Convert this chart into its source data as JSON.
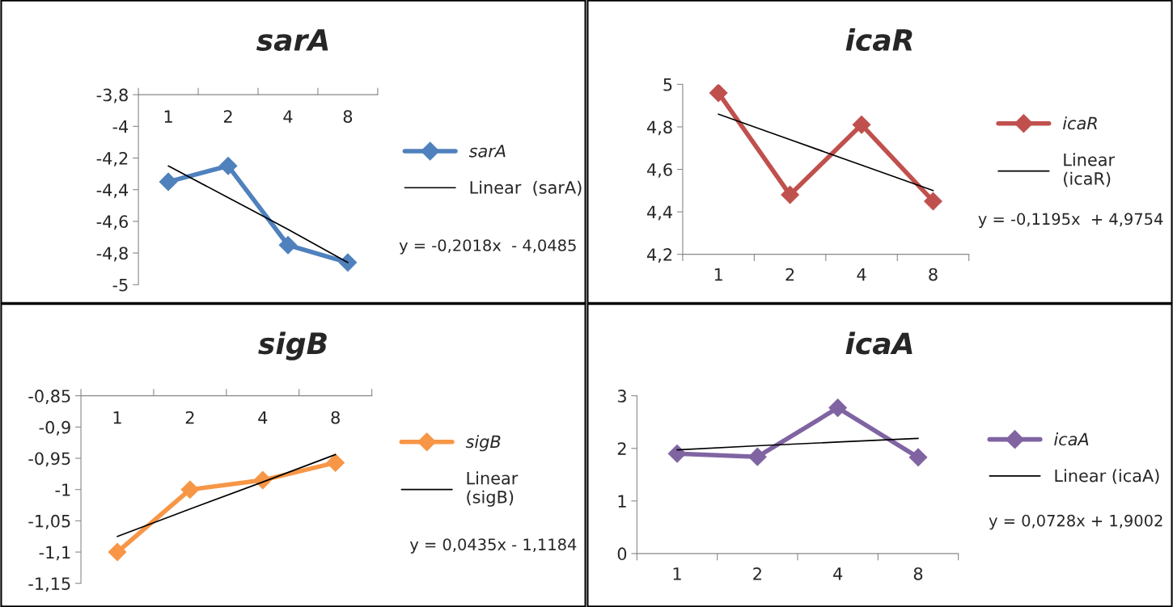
{
  "chart_data": [
    {
      "type": "line",
      "title": "sarA",
      "categories": [
        "1",
        "2",
        "4",
        "8"
      ],
      "ylim": [
        -5,
        -3.8
      ],
      "yticks": [
        {
          "value": -5,
          "label": "-5"
        },
        {
          "value": -4.8,
          "label": "-4,8"
        },
        {
          "value": -4.6,
          "label": "-4,6"
        },
        {
          "value": -4.4,
          "label": "-4,4"
        },
        {
          "value": -4.2,
          "label": "-4,2"
        },
        {
          "value": -4,
          "label": "-4"
        },
        {
          "value": -3.8,
          "label": "-3,8"
        }
      ],
      "marker": "diamond",
      "legend": "right",
      "grid": false,
      "annotations": [
        "y = -0,2018x  - 4,0485"
      ],
      "series": [
        {
          "name": "sarA",
          "color": "#4f81bd",
          "values": [
            -4.35,
            -4.25,
            -4.75,
            -4.86
          ]
        },
        {
          "name": "Linear  (sarA)",
          "color": "#000000",
          "marker": "none",
          "values": [
            -4.25,
            -4.45,
            -4.65,
            -4.86
          ]
        }
      ]
    },
    {
      "type": "line",
      "title": "icaR",
      "categories": [
        "1",
        "2",
        "4",
        "8"
      ],
      "ylim": [
        4.2,
        5
      ],
      "yticks": [
        {
          "value": 4.2,
          "label": "4,2"
        },
        {
          "value": 4.4,
          "label": "4,4"
        },
        {
          "value": 4.6,
          "label": "4,6"
        },
        {
          "value": 4.8,
          "label": "4,8"
        },
        5
      ],
      "marker": "diamond",
      "legend": "right",
      "grid": false,
      "annotations": [
        "y = -0,1195x  + 4,9754"
      ],
      "series": [
        {
          "name": "icaR",
          "color": "#c0504d",
          "values": [
            4.96,
            4.48,
            4.81,
            4.45
          ]
        },
        {
          "name": "Linear\n(icaR)",
          "color": "#000000",
          "marker": "none",
          "values": [
            4.86,
            4.74,
            4.62,
            4.5
          ]
        }
      ]
    },
    {
      "type": "line",
      "title": "sigB",
      "categories": [
        "1",
        "2",
        "4",
        "8"
      ],
      "ylim": [
        -1.15,
        -0.85
      ],
      "yticks": [
        {
          "value": -1.15,
          "label": "-1,15"
        },
        {
          "value": -1.1,
          "label": "-1,1"
        },
        {
          "value": -1.05,
          "label": "-1,05"
        },
        -1,
        {
          "value": -0.95,
          "label": "-0,95"
        },
        {
          "value": -0.9,
          "label": "-0,9"
        },
        {
          "value": -0.85,
          "label": "-0,85"
        }
      ],
      "marker": "diamond",
      "legend": "right",
      "grid": false,
      "annotations": [
        "y = 0,0435x - 1,1184"
      ],
      "series": [
        {
          "name": "sigB",
          "color": "#f79646",
          "values": [
            -1.1,
            -1.0,
            -0.985,
            -0.957
          ]
        },
        {
          "name": "Linear\n(sigB)",
          "color": "#000000",
          "marker": "none",
          "values": [
            -1.075,
            -1.031,
            -0.988,
            -0.944
          ]
        }
      ]
    },
    {
      "type": "line",
      "title": "icaA",
      "categories": [
        "1",
        "2",
        "4",
        "8"
      ],
      "ylim": [
        0,
        3
      ],
      "yticks": [
        0,
        1,
        2,
        3
      ],
      "marker": "diamond",
      "legend": "right",
      "grid": false,
      "annotations": [
        "y = 0,0728x + 1,9002"
      ],
      "series": [
        {
          "name": "icaA",
          "color": "#8064a2",
          "values": [
            1.9,
            1.84,
            2.77,
            1.83
          ]
        },
        {
          "name": "Linear (icaA)",
          "color": "#000000",
          "marker": "none",
          "values": [
            1.97,
            2.05,
            2.12,
            2.19
          ]
        }
      ]
    }
  ]
}
